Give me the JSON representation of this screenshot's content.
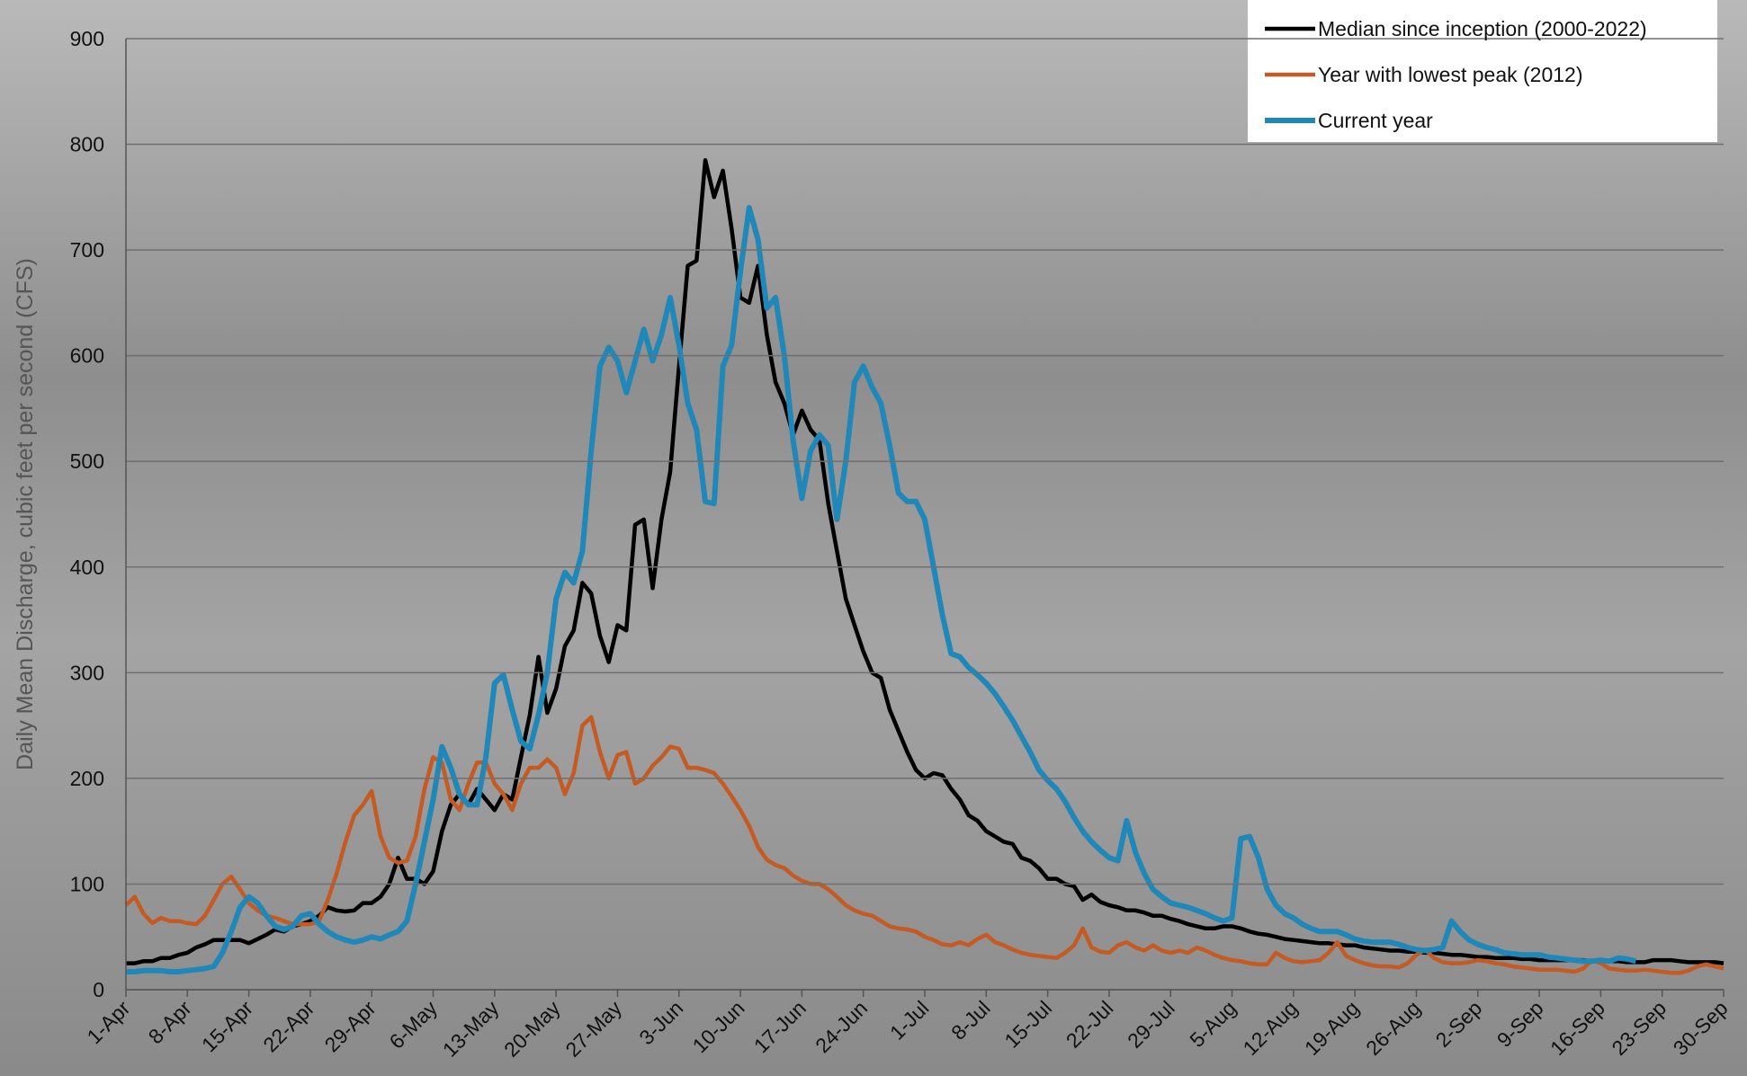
{
  "chart_data": {
    "type": "line",
    "y_label": "Daily Mean Discharge, cubic feet per second (CFS)",
    "categories": [
      "1-Apr",
      null,
      null,
      null,
      null,
      null,
      null,
      "8-Apr",
      null,
      null,
      null,
      null,
      null,
      null,
      "15-Apr",
      null,
      null,
      null,
      null,
      null,
      null,
      "22-Apr",
      null,
      null,
      null,
      null,
      null,
      null,
      "29-Apr",
      null,
      null,
      null,
      null,
      null,
      null,
      "6-May",
      null,
      null,
      null,
      null,
      null,
      null,
      "13-May",
      null,
      null,
      null,
      null,
      null,
      null,
      "20-May",
      null,
      null,
      null,
      null,
      null,
      null,
      "27-May",
      null,
      null,
      null,
      null,
      null,
      null,
      "3-Jun",
      null,
      null,
      null,
      null,
      null,
      null,
      "10-Jun",
      null,
      null,
      null,
      null,
      null,
      null,
      "17-Jun",
      null,
      null,
      null,
      null,
      null,
      null,
      "24-Jun",
      null,
      null,
      null,
      null,
      null,
      null,
      "1-Jul",
      null,
      null,
      null,
      null,
      null,
      null,
      "8-Jul",
      null,
      null,
      null,
      null,
      null,
      null,
      "15-Jul",
      null,
      null,
      null,
      null,
      null,
      null,
      "22-Jul",
      null,
      null,
      null,
      null,
      null,
      null,
      "29-Jul",
      null,
      null,
      null,
      null,
      null,
      null,
      "5-Aug",
      null,
      null,
      null,
      null,
      null,
      null,
      "12-Aug",
      null,
      null,
      null,
      null,
      null,
      null,
      "19-Aug",
      null,
      null,
      null,
      null,
      null,
      null,
      "26-Aug",
      null,
      null,
      null,
      null,
      null,
      null,
      "2-Sep",
      null,
      null,
      null,
      null,
      null,
      null,
      "9-Sep",
      null,
      null,
      null,
      null,
      null,
      null,
      "16-Sep",
      null,
      null,
      null,
      null,
      null,
      null,
      "23-Sep",
      null,
      null,
      null,
      null,
      null,
      null,
      "30-Sep"
    ],
    "series": [
      {
        "name": "Median since inception (2000-2022)",
        "color": "#000000",
        "values": [
          25,
          25,
          27,
          27,
          30,
          30,
          33,
          35,
          40,
          43,
          47,
          47,
          47,
          47,
          44,
          48,
          52,
          57,
          55,
          60,
          62,
          65,
          70,
          78,
          75,
          74,
          75,
          82,
          82,
          88,
          100,
          125,
          105,
          105,
          100,
          112,
          150,
          175,
          185,
          175,
          190,
          180,
          170,
          185,
          180,
          220,
          260,
          315,
          262,
          285,
          325,
          340,
          385,
          375,
          335,
          310,
          345,
          340,
          440,
          445,
          380,
          445,
          490,
          590,
          685,
          690,
          785,
          750,
          775,
          720,
          655,
          650,
          685,
          620,
          575,
          555,
          525,
          548,
          530,
          520,
          460,
          415,
          370,
          345,
          320,
          300,
          295,
          265,
          245,
          225,
          208,
          200,
          205,
          203,
          190,
          180,
          165,
          160,
          150,
          145,
          140,
          138,
          125,
          122,
          115,
          105,
          105,
          100,
          98,
          85,
          90,
          83,
          80,
          78,
          75,
          75,
          73,
          70,
          70,
          67,
          65,
          62,
          60,
          58,
          58,
          60,
          60,
          58,
          55,
          53,
          52,
          50,
          48,
          47,
          46,
          45,
          44,
          44,
          43,
          42,
          42,
          40,
          39,
          38,
          37,
          37,
          36,
          36,
          35,
          35,
          34,
          33,
          33,
          32,
          31,
          31,
          30,
          30,
          30,
          29,
          29,
          28,
          28,
          28,
          28,
          28,
          28,
          27,
          27,
          27,
          27,
          26,
          26,
          26,
          28,
          28,
          28,
          27,
          26,
          26,
          26,
          26,
          25
        ]
      },
      {
        "name": "Year with lowest peak (2012)",
        "color": "#c55a22",
        "values": [
          80,
          88,
          72,
          63,
          68,
          65,
          65,
          63,
          62,
          70,
          85,
          100,
          107,
          95,
          82,
          75,
          70,
          68,
          65,
          62,
          62,
          62,
          65,
          85,
          110,
          140,
          165,
          175,
          188,
          145,
          125,
          120,
          122,
          145,
          190,
          220,
          215,
          180,
          170,
          195,
          215,
          215,
          195,
          185,
          170,
          195,
          210,
          210,
          218,
          210,
          185,
          205,
          250,
          258,
          225,
          200,
          222,
          225,
          195,
          200,
          212,
          220,
          230,
          228,
          210,
          210,
          208,
          205,
          195,
          183,
          170,
          155,
          135,
          123,
          118,
          115,
          108,
          103,
          100,
          100,
          95,
          88,
          80,
          75,
          72,
          70,
          65,
          60,
          58,
          57,
          55,
          50,
          47,
          43,
          42,
          45,
          42,
          48,
          52,
          45,
          42,
          38,
          35,
          33,
          32,
          31,
          30,
          35,
          42,
          58,
          40,
          36,
          35,
          42,
          45,
          40,
          37,
          42,
          37,
          35,
          37,
          35,
          40,
          37,
          33,
          30,
          28,
          27,
          25,
          24,
          24,
          35,
          30,
          27,
          26,
          27,
          28,
          35,
          45,
          32,
          28,
          25,
          23,
          22,
          22,
          21,
          25,
          33,
          38,
          30,
          26,
          25,
          25,
          26,
          28,
          27,
          25,
          24,
          22,
          21,
          20,
          19,
          19,
          19,
          18,
          17,
          20,
          28,
          25,
          20,
          19,
          18,
          18,
          19,
          18,
          17,
          16,
          16,
          18,
          22,
          24,
          22,
          20
        ]
      },
      {
        "name": "Current year",
        "color": "#1f88b8",
        "values": [
          17,
          17,
          18,
          18,
          18,
          17,
          17,
          18,
          19,
          20,
          22,
          35,
          55,
          78,
          88,
          82,
          70,
          60,
          57,
          60,
          70,
          72,
          62,
          55,
          50,
          47,
          45,
          47,
          50,
          48,
          52,
          55,
          65,
          100,
          140,
          180,
          230,
          210,
          185,
          175,
          175,
          220,
          290,
          298,
          265,
          235,
          228,
          260,
          300,
          370,
          395,
          385,
          415,
          510,
          590,
          608,
          595,
          565,
          595,
          625,
          595,
          620,
          655,
          610,
          555,
          530,
          462,
          460,
          590,
          610,
          680,
          740,
          710,
          645,
          655,
          600,
          520,
          465,
          510,
          525,
          515,
          445,
          500,
          575,
          590,
          570,
          555,
          515,
          470,
          462,
          462,
          445,
          400,
          355,
          318,
          315,
          305,
          298,
          290,
          280,
          268,
          255,
          240,
          225,
          208,
          198,
          190,
          178,
          163,
          150,
          140,
          132,
          125,
          122,
          160,
          130,
          110,
          95,
          88,
          82,
          80,
          78,
          75,
          72,
          68,
          65,
          68,
          143,
          145,
          125,
          95,
          80,
          72,
          68,
          62,
          58,
          55,
          55,
          55,
          52,
          48,
          46,
          45,
          45,
          45,
          43,
          40,
          38,
          37,
          38,
          40,
          65,
          55,
          47,
          43,
          40,
          38,
          35,
          34,
          33,
          33,
          33,
          31,
          30,
          29,
          28,
          27,
          27,
          28,
          27,
          30,
          29,
          27,
          null,
          null,
          null,
          null,
          null,
          null,
          null,
          null,
          null,
          null
        ]
      }
    ],
    "ylim": [
      0,
      900
    ],
    "yticks": [
      0,
      100,
      200,
      300,
      400,
      500,
      600,
      700,
      800,
      900
    ],
    "grid": true
  }
}
